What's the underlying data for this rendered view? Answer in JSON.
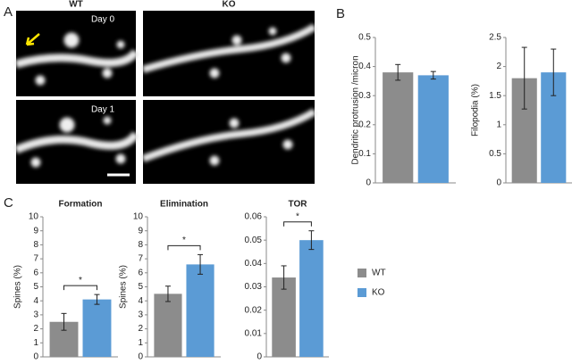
{
  "panel_labels": [
    "A",
    "B",
    "C"
  ],
  "panel_a": {
    "columns": [
      "WT",
      "KO"
    ],
    "rows": [
      "Day 0",
      "Day 1"
    ]
  },
  "legend": {
    "items": [
      {
        "name": "WT",
        "color": "#8c8c8c"
      },
      {
        "name": "KO",
        "color": "#5b9bd5"
      }
    ]
  },
  "chart_data": [
    {
      "type": "bar",
      "y_label": "Dendritic protrusion /micron",
      "values": [
        0.38,
        0.37
      ],
      "errors": [
        0.027,
        0.013
      ],
      "ylim": [
        0,
        0.5
      ],
      "yticks": [
        0,
        0.1,
        0.2,
        0.3,
        0.4,
        0.5
      ]
    },
    {
      "type": "bar",
      "y_label": "Filopodia (%)",
      "values": [
        1.8,
        1.9
      ],
      "errors": [
        0.53,
        0.4
      ],
      "ylim": [
        0,
        2.5
      ],
      "yticks": [
        0,
        0.5,
        1,
        1.5,
        2,
        2.5
      ]
    },
    {
      "type": "bar",
      "title": "Formation",
      "y_label": "Spines (%)",
      "values": [
        2.5,
        4.1
      ],
      "errors": [
        0.6,
        0.35
      ],
      "ylim": [
        0,
        10
      ],
      "yticks": [
        0,
        1,
        2,
        3,
        4,
        5,
        6,
        7,
        8,
        9,
        10
      ],
      "significance": "*"
    },
    {
      "type": "bar",
      "title": "Elimination",
      "y_label": "Spines (%)",
      "values": [
        4.5,
        6.6
      ],
      "errors": [
        0.55,
        0.7
      ],
      "ylim": [
        0,
        10
      ],
      "yticks": [
        0,
        1,
        2,
        3,
        4,
        5,
        6,
        7,
        8,
        9,
        10
      ],
      "significance": "*"
    },
    {
      "type": "bar",
      "title": "TOR",
      "values": [
        0.034,
        0.05
      ],
      "errors": [
        0.005,
        0.004
      ],
      "ylim": [
        0,
        0.06
      ],
      "yticks": [
        0,
        0.01,
        0.02,
        0.03,
        0.04,
        0.05,
        0.06
      ],
      "significance": "*"
    }
  ]
}
